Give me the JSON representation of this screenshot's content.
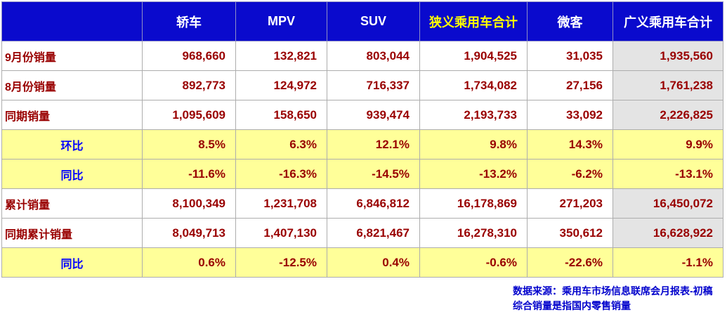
{
  "chart_data": {
    "type": "table",
    "columns": [
      "轿车",
      "MPV",
      "SUV",
      "狭义乘用车合计",
      "微客",
      "广义乘用车合计"
    ],
    "highlight_column": "狭义乘用车合计",
    "rows": [
      {
        "label": "9月份销量",
        "kind": "sales",
        "values": [
          "968,660",
          "132,821",
          "803,044",
          "1,904,525",
          "31,035",
          "1,935,560"
        ]
      },
      {
        "label": "8月份销量",
        "kind": "sales",
        "values": [
          "892,773",
          "124,972",
          "716,337",
          "1,734,082",
          "27,156",
          "1,761,238"
        ]
      },
      {
        "label": "同期销量",
        "kind": "sales",
        "values": [
          "1,095,609",
          "158,650",
          "939,474",
          "2,193,733",
          "33,092",
          "2,226,825"
        ]
      },
      {
        "label": "环比",
        "kind": "ratio",
        "values": [
          "8.5%",
          "6.3%",
          "12.1%",
          "9.8%",
          "14.3%",
          "9.9%"
        ]
      },
      {
        "label": "同比",
        "kind": "ratio",
        "values": [
          "-11.6%",
          "-16.3%",
          "-14.5%",
          "-13.2%",
          "-6.2%",
          "-13.1%"
        ]
      },
      {
        "label": "累计销量",
        "kind": "sales",
        "values": [
          "8,100,349",
          "1,231,708",
          "6,846,812",
          "16,178,869",
          "271,203",
          "16,450,072"
        ]
      },
      {
        "label": "同期累计销量",
        "kind": "sales",
        "values": [
          "8,049,713",
          "1,407,130",
          "6,821,467",
          "16,278,310",
          "350,612",
          "16,628,922"
        ]
      },
      {
        "label": "同比",
        "kind": "ratio",
        "values": [
          "0.6%",
          "-12.5%",
          "0.4%",
          "-0.6%",
          "-22.6%",
          "-1.1%"
        ]
      }
    ]
  },
  "footer": {
    "line1": "数据来源：乘用车市场信息联席会月报表-初稿",
    "line2": "综合销量是指国内零售销量"
  },
  "colors": {
    "header_bg": "#0a0acd",
    "header_text": "#ffffff",
    "header_highlight_text": "#ffff00",
    "value_text": "#990000",
    "ratio_row_bg": "#ffff99",
    "ratio_label_text": "#0000ff",
    "total_column_bg": "#e4e4e4",
    "footer_text": "#0000cc"
  }
}
